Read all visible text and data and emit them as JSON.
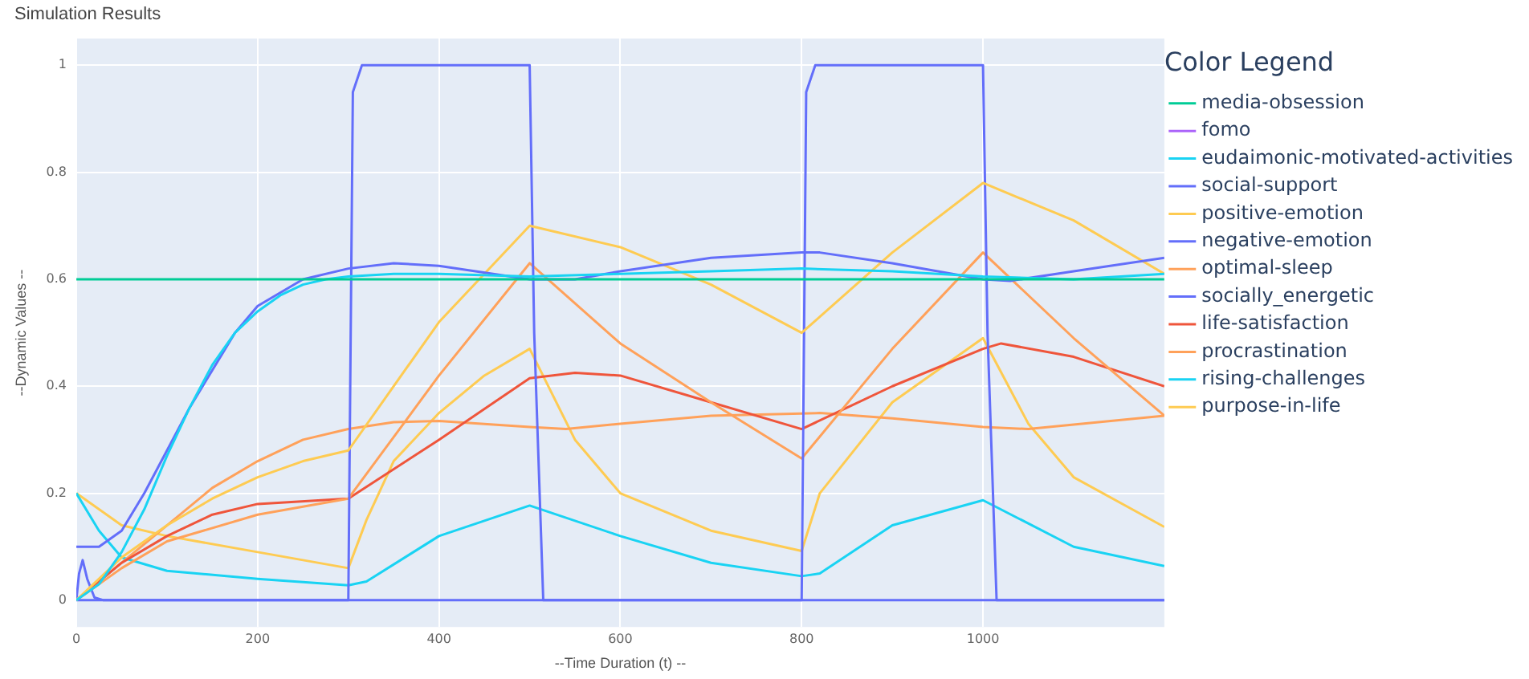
{
  "chart_data": {
    "type": "line",
    "title": "Simulation Results",
    "xlabel": "--Time Duration (t) --",
    "ylabel": "--Dynamic Values --",
    "legend_title": "Color Legend",
    "legend": "right",
    "grid": true,
    "marker": "none",
    "line_style": "solid",
    "xlim": [
      0,
      1200
    ],
    "xticks": [
      0,
      200,
      400,
      600,
      800,
      1000
    ],
    "ylim": [
      -0.05,
      1.05
    ],
    "yticks": [
      0,
      0.2,
      0.4,
      0.6,
      0.8,
      1
    ],
    "series": [
      {
        "name": "media-obsession",
        "color": "#00cc96",
        "x": [
          0,
          1200
        ],
        "values": [
          0.6,
          0.6
        ]
      },
      {
        "name": "fomo",
        "color": "#ab63fa"
      },
      {
        "name": "eudaimonic-motivated-activities",
        "color": "#19d3f3",
        "x": [
          0,
          25,
          50,
          75,
          100,
          125,
          150,
          175,
          200,
          225,
          250,
          275,
          300,
          350,
          400,
          500,
          600,
          700,
          800,
          900,
          1000,
          1100,
          1200
        ],
        "values": [
          0,
          0.03,
          0.09,
          0.17,
          0.27,
          0.36,
          0.44,
          0.5,
          0.54,
          0.57,
          0.59,
          0.6,
          0.605,
          0.61,
          0.61,
          0.605,
          0.61,
          0.615,
          0.62,
          0.615,
          0.605,
          0.6,
          0.61
        ]
      },
      {
        "name": "social-support",
        "color": "#636efa",
        "x": [
          0,
          25,
          50,
          75,
          100,
          125,
          150,
          175,
          200,
          250,
          300,
          350,
          400,
          500,
          550,
          600,
          700,
          800,
          820,
          900,
          1000,
          1030,
          1100,
          1200
        ],
        "values": [
          0.1,
          0.1,
          0.13,
          0.2,
          0.28,
          0.36,
          0.43,
          0.5,
          0.55,
          0.6,
          0.62,
          0.63,
          0.625,
          0.6,
          0.6,
          0.615,
          0.64,
          0.65,
          0.65,
          0.63,
          0.6,
          0.597,
          0.615,
          0.64
        ]
      },
      {
        "name": "positive-emotion",
        "color": "#fecb52",
        "x": [
          0,
          50,
          100,
          150,
          200,
          250,
          300,
          400,
          500,
          600,
          700,
          800,
          900,
          1000,
          1100,
          1200
        ],
        "values": [
          0,
          0.08,
          0.14,
          0.19,
          0.23,
          0.26,
          0.28,
          0.52,
          0.7,
          0.66,
          0.59,
          0.5,
          0.65,
          0.78,
          0.71,
          0.61
        ]
      },
      {
        "name": "negative-emotion",
        "color": "#636efa",
        "x": [
          0,
          300,
          305,
          315,
          500,
          505,
          515,
          800,
          805,
          815,
          1000,
          1005,
          1015,
          1200
        ],
        "values": [
          0,
          0,
          0.95,
          1,
          1,
          0.5,
          0,
          0,
          0.95,
          1,
          1,
          0.5,
          0,
          0
        ]
      },
      {
        "name": "optimal-sleep",
        "color": "#ffa15a",
        "x": [
          0,
          50,
          100,
          200,
          300,
          400,
          500,
          600,
          700,
          800,
          900,
          1000,
          1100,
          1200
        ],
        "values": [
          0,
          0.06,
          0.11,
          0.16,
          0.19,
          0.42,
          0.63,
          0.48,
          0.37,
          0.265,
          0.47,
          0.65,
          0.49,
          0.345
        ]
      },
      {
        "name": "socially_energetic",
        "color": "#636efa",
        "x": [
          0,
          3,
          7,
          12,
          20,
          30,
          1200
        ],
        "values": [
          0,
          0.05,
          0.075,
          0.04,
          0.005,
          0,
          0
        ]
      },
      {
        "name": "life-satisfaction",
        "color": "#ef553b",
        "x": [
          0,
          50,
          100,
          150,
          200,
          300,
          400,
          500,
          550,
          600,
          700,
          800,
          900,
          1000,
          1020,
          1100,
          1200
        ],
        "values": [
          0,
          0.07,
          0.12,
          0.16,
          0.18,
          0.19,
          0.3,
          0.415,
          0.425,
          0.42,
          0.37,
          0.32,
          0.4,
          0.47,
          0.48,
          0.455,
          0.4
        ]
      },
      {
        "name": "procrastination",
        "color": "#ffa15a",
        "x": [
          0,
          50,
          100,
          150,
          200,
          250,
          300,
          350,
          400,
          500,
          540,
          600,
          700,
          820,
          900,
          1000,
          1050,
          1200
        ],
        "values": [
          0,
          0.07,
          0.14,
          0.21,
          0.26,
          0.3,
          0.32,
          0.333,
          0.335,
          0.324,
          0.32,
          0.33,
          0.345,
          0.35,
          0.34,
          0.324,
          0.32,
          0.345
        ]
      },
      {
        "name": "rising-challenges",
        "color": "#19d3f3",
        "x": [
          0,
          25,
          50,
          100,
          200,
          300,
          320,
          400,
          500,
          600,
          700,
          800,
          820,
          900,
          1000,
          1100,
          1200
        ],
        "values": [
          0.2,
          0.13,
          0.08,
          0.055,
          0.04,
          0.028,
          0.035,
          0.12,
          0.177,
          0.12,
          0.07,
          0.045,
          0.05,
          0.14,
          0.187,
          0.1,
          0.064
        ]
      },
      {
        "name": "purpose-in-life",
        "color": "#fecb52",
        "x": [
          0,
          50,
          100,
          200,
          300,
          320,
          350,
          400,
          450,
          500,
          550,
          600,
          700,
          800,
          820,
          900,
          1000,
          1050,
          1100,
          1200
        ],
        "values": [
          0.2,
          0.14,
          0.12,
          0.09,
          0.06,
          0.15,
          0.26,
          0.35,
          0.42,
          0.47,
          0.3,
          0.2,
          0.13,
          0.092,
          0.2,
          0.37,
          0.49,
          0.33,
          0.23,
          0.137
        ]
      }
    ]
  }
}
